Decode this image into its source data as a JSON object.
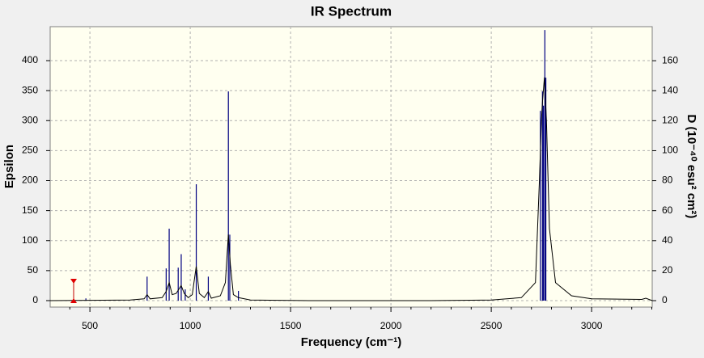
{
  "chart_data": {
    "type": "spectrum",
    "title": "IR Spectrum",
    "x_label": "Frequency (cm⁻¹)",
    "y_label": "Epsilon",
    "y2_label": "D (10⁻⁴⁰ esu² cm²)",
    "xlim": [
      302,
      3302
    ],
    "ylim": [
      -10.8,
      456.6
    ],
    "y2lim": [
      -4.3,
      182.7
    ],
    "xticks": [
      500,
      1000,
      1500,
      2000,
      2500,
      3000
    ],
    "xminorticks": [
      400,
      600,
      700,
      800,
      900,
      1100,
      1200,
      1300,
      1400,
      1600,
      1700,
      1800,
      1900,
      2100,
      2200,
      2300,
      2400,
      2600,
      2700,
      2800,
      2900,
      3100,
      3200,
      3300
    ],
    "yticks": [
      0,
      50,
      100,
      150,
      200,
      250,
      300,
      350,
      400
    ],
    "y2ticks": [
      0,
      20,
      40,
      60,
      80,
      100,
      120,
      140,
      160
    ],
    "grid": true,
    "curve": {
      "color": "#000000",
      "x": [
        302,
        700,
        770,
        785,
        800,
        860,
        880,
        895,
        910,
        930,
        945,
        955,
        970,
        990,
        1010,
        1030,
        1045,
        1070,
        1090,
        1105,
        1150,
        1175,
        1190,
        1200,
        1215,
        1240,
        1300,
        1600,
        2200,
        2500,
        2650,
        2720,
        2740,
        2750,
        2755,
        2765,
        2775,
        2790,
        2820,
        2900,
        3000,
        3250,
        3270,
        3302
      ],
      "values": [
        0,
        1,
        3,
        10,
        3,
        5,
        15,
        30,
        10,
        12,
        20,
        25,
        12,
        5,
        10,
        57,
        12,
        5,
        15,
        4,
        8,
        30,
        110,
        60,
        10,
        5,
        1,
        0,
        0,
        1,
        5,
        30,
        200,
        300,
        330,
        372,
        300,
        120,
        30,
        8,
        3,
        2,
        4,
        0
      ]
    },
    "sticks": {
      "color": "#000080",
      "axis": "y2",
      "x": [
        480,
        785,
        880,
        895,
        940,
        955,
        975,
        1030,
        1090,
        1190,
        1197,
        1240,
        2745,
        2755,
        2760,
        2767,
        2772
      ],
      "values": [
        1.5,
        16,
        21.5,
        48,
        22,
        31,
        7.5,
        77.6,
        16,
        139.5,
        44,
        6.5,
        126.6,
        139.5,
        130,
        180.5,
        148.7
      ]
    }
  }
}
